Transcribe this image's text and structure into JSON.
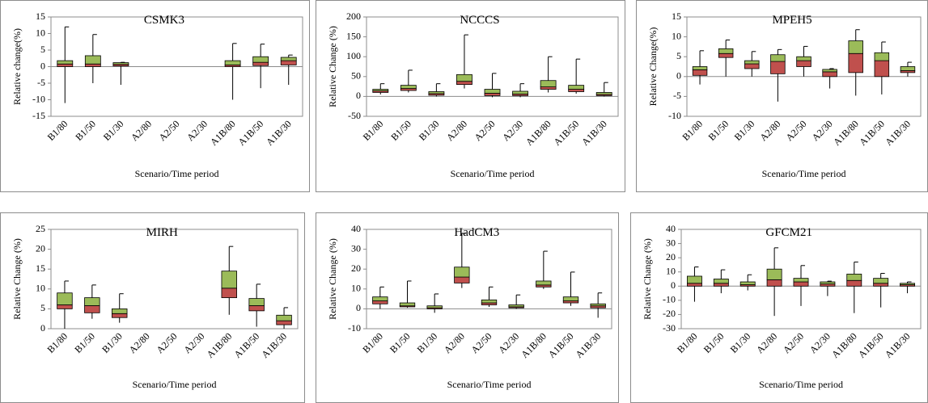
{
  "chart_data": [
    {
      "type": "box",
      "title": "CSMK3",
      "x_label": "Scenario/Time period",
      "y_label": "Relative change(%)",
      "categories": [
        "B1/80",
        "B1/50",
        "B1/30",
        "A2/80",
        "A2/50",
        "A2/30",
        "A1B/80",
        "A1B/50",
        "A1B/30"
      ],
      "min": [
        -11,
        -5,
        -5.5,
        null,
        null,
        null,
        -10,
        -6.5,
        -5.5
      ],
      "q1": [
        0,
        0,
        0.2,
        null,
        null,
        null,
        0,
        0.3,
        0.5
      ],
      "median": [
        0.8,
        0.8,
        0.7,
        null,
        null,
        null,
        0.5,
        1.3,
        1.8
      ],
      "q3": [
        1.8,
        3.3,
        1.2,
        null,
        null,
        null,
        1.8,
        3,
        2.8
      ],
      "max": [
        12,
        9.7,
        1.3,
        null,
        null,
        null,
        7,
        6.8,
        3.5
      ],
      "lower_color": "#c0504d",
      "upper_color": "#9bbb59",
      "ylim": [
        -15,
        15
      ],
      "yticks": [
        -15,
        -10,
        -5,
        0,
        5,
        10,
        15
      ]
    },
    {
      "type": "box",
      "title": "NCCCS",
      "x_label": "Scenario/Time period",
      "y_label": "Relative Change (%)",
      "categories": [
        "B1/80",
        "B1/50",
        "B1/30",
        "A2/80",
        "A2/50",
        "A2/30",
        "A1B/80",
        "A1B/50",
        "A1B/30"
      ],
      "min": [
        5,
        10,
        0,
        20,
        -2,
        -2,
        10,
        7,
        0
      ],
      "q1": [
        10,
        15,
        3,
        30,
        2,
        2,
        18,
        12,
        2
      ],
      "median": [
        14,
        20,
        7,
        38,
        8,
        6,
        24,
        18,
        5
      ],
      "q3": [
        18,
        28,
        12,
        55,
        18,
        13,
        40,
        28,
        10
      ],
      "max": [
        32,
        66,
        32,
        155,
        58,
        32,
        100,
        94,
        35
      ],
      "lower_color": "#c0504d",
      "upper_color": "#9bbb59",
      "ylim": [
        -50,
        200
      ],
      "yticks": [
        -50,
        0,
        50,
        100,
        150,
        200
      ]
    },
    {
      "type": "box",
      "title": "MPEH5",
      "x_label": "Scenario/Time period",
      "y_label": "Relative Change(%)",
      "categories": [
        "B1/80",
        "B1/50",
        "B1/30",
        "A2/80",
        "A2/50",
        "A2/30",
        "A1B/80",
        "A1B/50",
        "A1B/30"
      ],
      "min": [
        -2,
        0,
        0,
        -6.3,
        0,
        -3,
        -4.8,
        -4.5,
        0
      ],
      "q1": [
        0.3,
        4.8,
        2,
        0.7,
        2.5,
        0,
        1,
        0,
        1
      ],
      "median": [
        1.7,
        5.8,
        3.2,
        3.8,
        4,
        1.2,
        5.8,
        4,
        1.5
      ],
      "q3": [
        2.5,
        7,
        4,
        5.5,
        5,
        1.8,
        9,
        6,
        2.5
      ],
      "max": [
        6.5,
        9.2,
        6.3,
        6.8,
        7.6,
        2,
        11.8,
        8.7,
        3.6
      ],
      "lower_color": "#c0504d",
      "upper_color": "#9bbb59",
      "ylim": [
        -10,
        15
      ],
      "yticks": [
        -10,
        -5,
        0,
        5,
        10,
        15
      ]
    },
    {
      "type": "box",
      "title": "MIRH",
      "x_label": "Scenario/Time period",
      "y_label": "Relative Change (%)",
      "categories": [
        "B1/80",
        "B1/50",
        "B1/30",
        "A2/80",
        "A2/50",
        "A2/30",
        "A1B/80",
        "A1B/50",
        "A1B/30"
      ],
      "min": [
        0,
        2.5,
        1.5,
        null,
        null,
        null,
        3.5,
        0.5,
        0
      ],
      "q1": [
        5,
        4,
        2.8,
        null,
        null,
        null,
        7.8,
        4.5,
        1
      ],
      "median": [
        6,
        5.8,
        3.8,
        null,
        null,
        null,
        10.2,
        5.8,
        2
      ],
      "q3": [
        9,
        7.8,
        5,
        null,
        null,
        null,
        14.5,
        7.6,
        3.4
      ],
      "max": [
        12,
        11,
        8.8,
        null,
        null,
        null,
        20.7,
        11.2,
        5.3
      ],
      "lower_color": "#c0504d",
      "upper_color": "#9bbb59",
      "ylim": [
        0,
        25
      ],
      "yticks": [
        0,
        5,
        10,
        15,
        20,
        25
      ]
    },
    {
      "type": "box",
      "title": "HadCM3",
      "x_label": "Scenario/Time period",
      "y_label": "Relative Change (%)",
      "categories": [
        "B1/80",
        "B1/50",
        "B1/30",
        "A2/80",
        "A2/50",
        "A2/30",
        "A1B/80",
        "A1B/50",
        "A1B/30"
      ],
      "min": [
        0,
        0.5,
        -2,
        10.5,
        1,
        0,
        10,
        1.5,
        -4.5
      ],
      "q1": [
        2.5,
        1,
        0,
        13,
        2,
        0.5,
        11,
        3,
        0.5
      ],
      "median": [
        4,
        1.5,
        0.5,
        16,
        3,
        1,
        12,
        4,
        1.5
      ],
      "q3": [
        6,
        3,
        1.5,
        21,
        4.5,
        2,
        14,
        6,
        2.5
      ],
      "max": [
        11,
        14,
        7.5,
        38,
        11,
        7,
        29,
        18.5,
        8
      ],
      "lower_color": "#c0504d",
      "upper_color": "#9bbb59",
      "ylim": [
        -10,
        40
      ],
      "yticks": [
        -10,
        0,
        10,
        20,
        30,
        40
      ]
    },
    {
      "type": "box",
      "title": "GFCM21",
      "x_label": "Scenario/Time period",
      "y_label": "Relative Change (%)",
      "categories": [
        "B1/80",
        "B1/50",
        "B1/30",
        "A2/80",
        "A2/50",
        "A2/30",
        "A1B/80",
        "A1B/50",
        "A1B/30"
      ],
      "min": [
        -11,
        -5,
        -3,
        -21,
        -14,
        -7,
        -19,
        -15,
        -5
      ],
      "q1": [
        0,
        0,
        0,
        0,
        0,
        0,
        0,
        0,
        0
      ],
      "median": [
        2,
        2,
        1,
        4.5,
        3,
        1.5,
        4,
        2,
        1
      ],
      "q3": [
        7,
        5,
        3,
        12,
        5.5,
        3,
        8.5,
        5.5,
        2
      ],
      "max": [
        13.5,
        11.5,
        8,
        27,
        14.5,
        3.5,
        17,
        9,
        3
      ],
      "lower_color": "#c0504d",
      "upper_color": "#9bbb59",
      "ylim": [
        -30,
        40
      ],
      "yticks": [
        -30,
        -20,
        -10,
        0,
        10,
        20,
        30,
        40
      ]
    }
  ]
}
